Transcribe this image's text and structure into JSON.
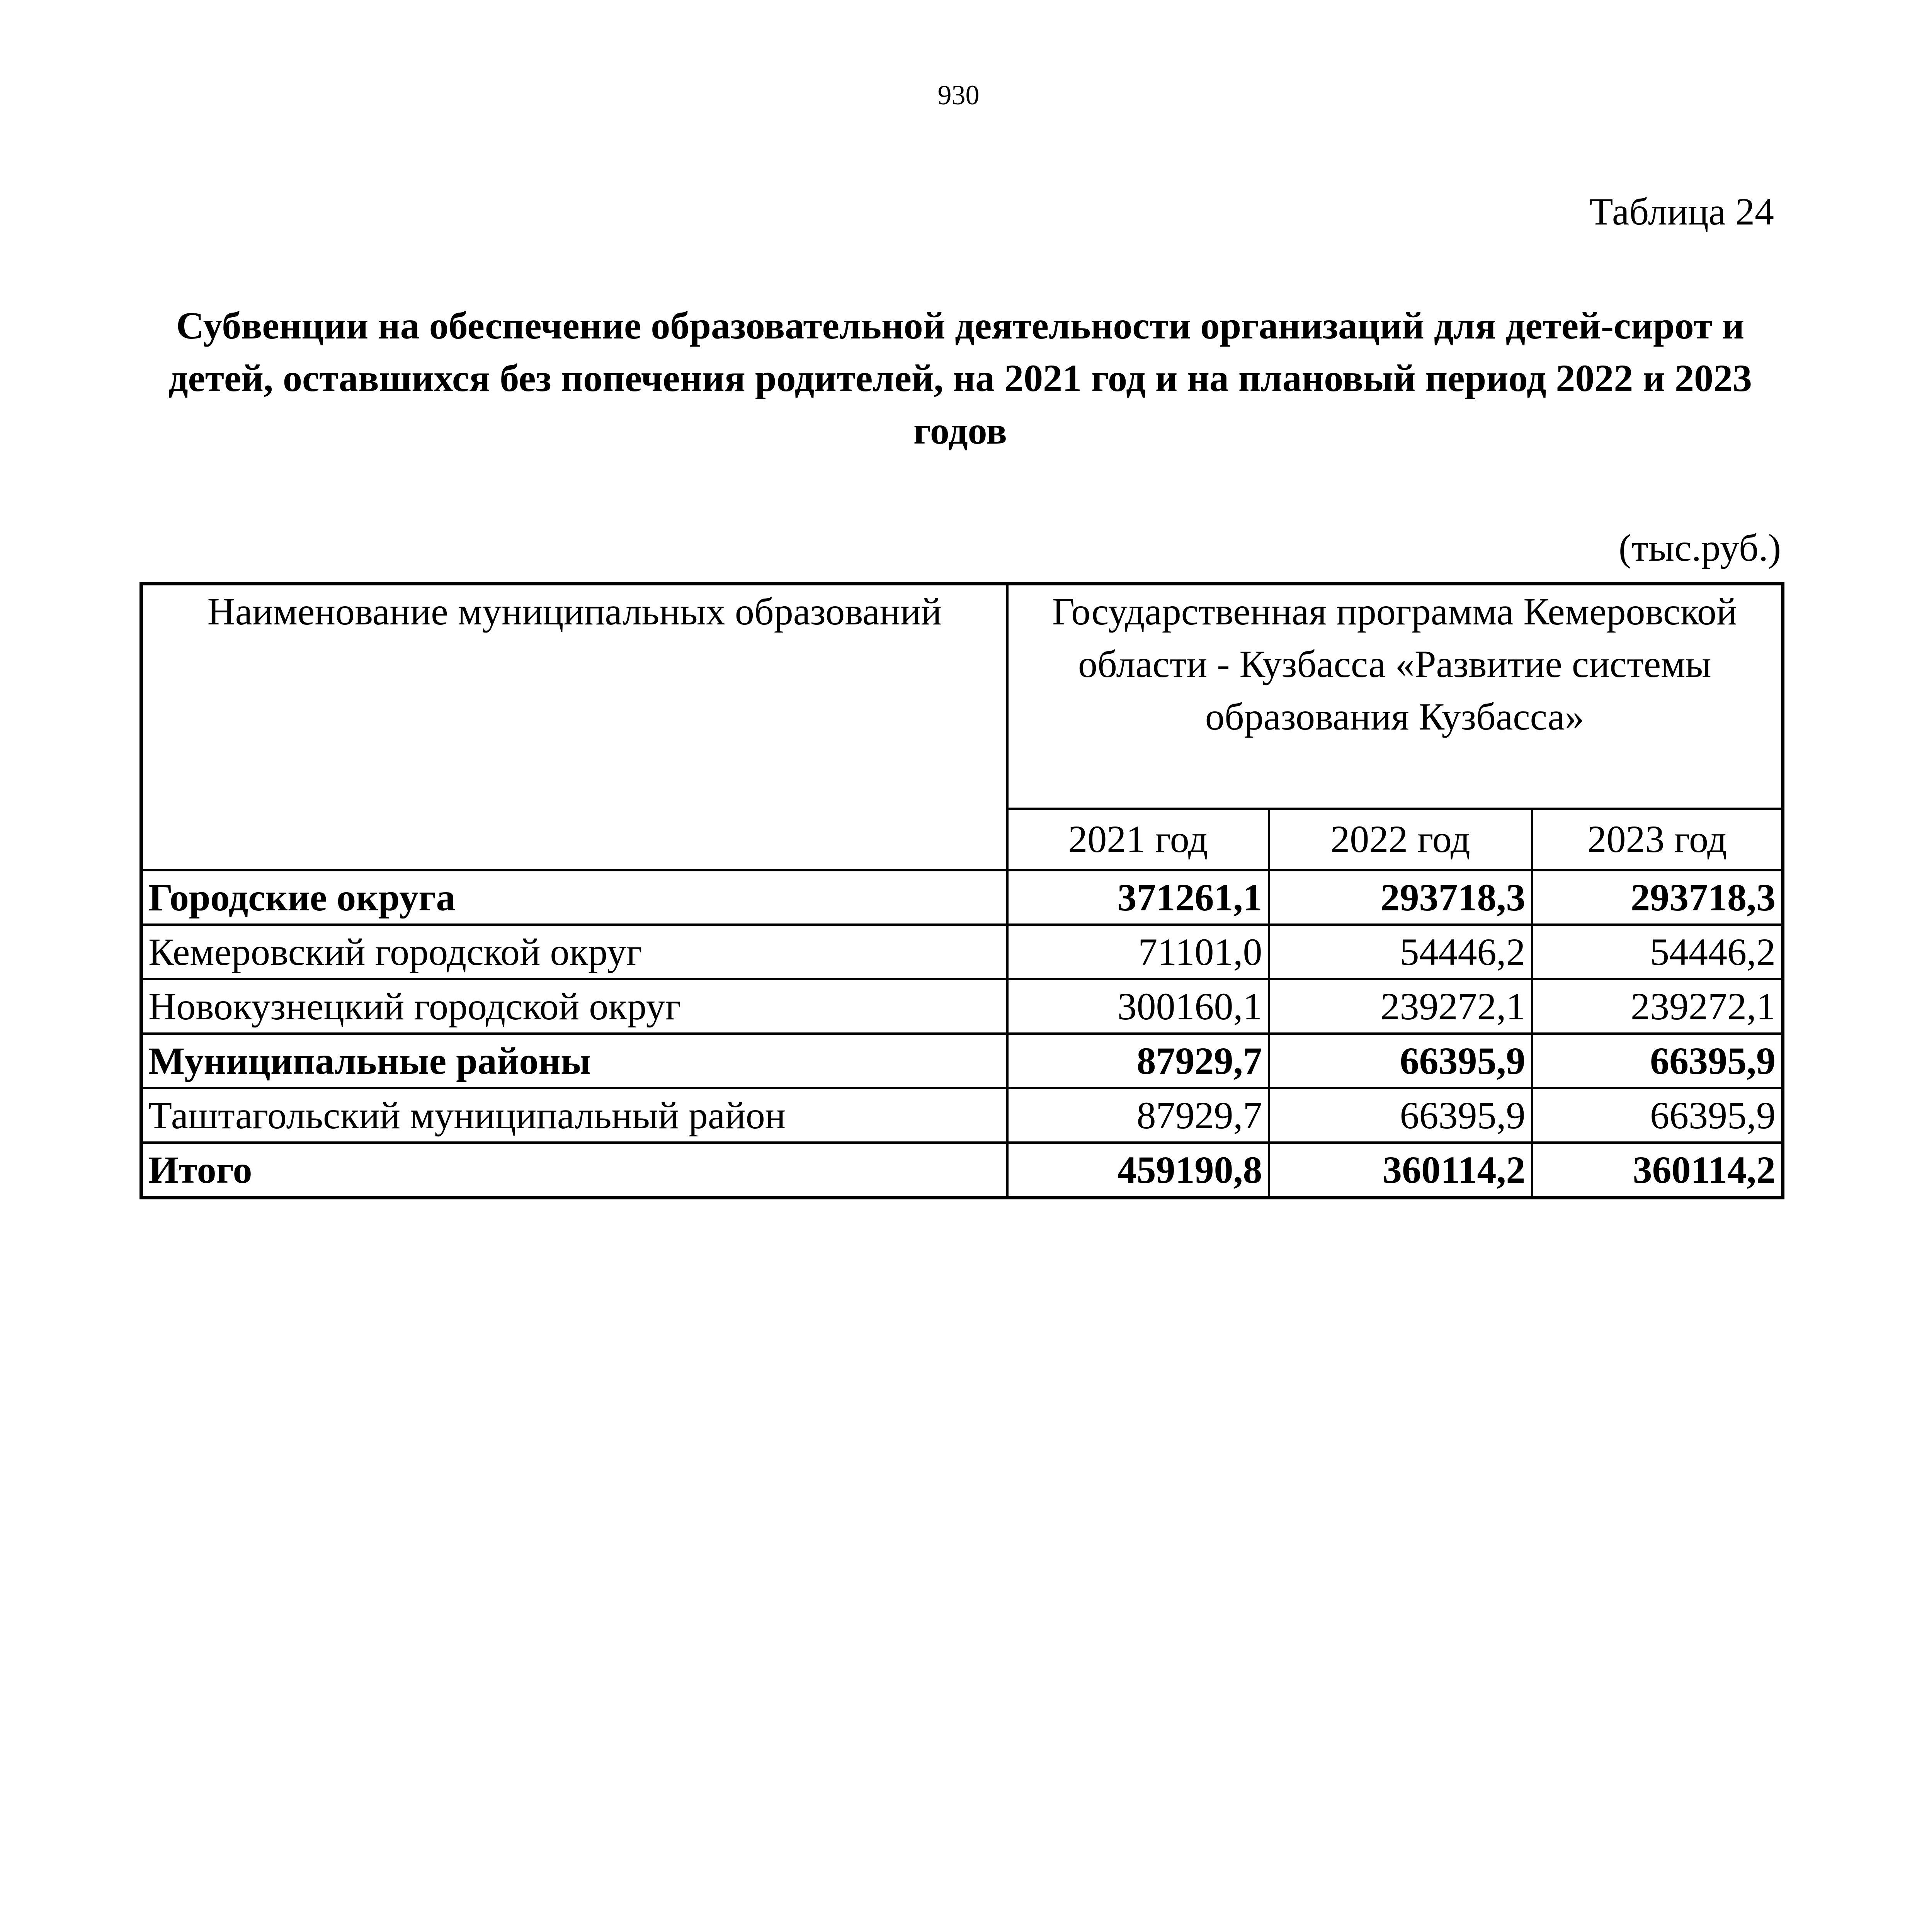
{
  "page_number": "930",
  "table_label": "Таблица 24",
  "title": "Субвенции на обеспечение образовательной деятельности организаций для детей-сирот и детей, оставшихся без попечения родителей, на 2021 год и на плановый период 2022 и 2023 годов",
  "units": "(тыс.руб.)",
  "table": {
    "header_name": "Наименование муниципальных образований",
    "header_program": "Государственная программа Кемеровской области - Кузбасса «Развитие системы образования Кузбасса»",
    "years": [
      "2021 год",
      "2022 год",
      "2023 год"
    ],
    "rows": [
      {
        "name": "Городские округа",
        "bold": true,
        "values": [
          "371261,1",
          "293718,3",
          "293718,3"
        ]
      },
      {
        "name": "Кемеровский городской округ",
        "bold": false,
        "values": [
          "71101,0",
          "54446,2",
          "54446,2"
        ]
      },
      {
        "name": "Новокузнецкий городской округ",
        "bold": false,
        "values": [
          "300160,1",
          "239272,1",
          "239272,1"
        ]
      },
      {
        "name": "Муниципальные районы",
        "bold": true,
        "values": [
          "87929,7",
          "66395,9",
          "66395,9"
        ]
      },
      {
        "name": "Таштагольский муниципальный район",
        "bold": false,
        "values": [
          "87929,7",
          "66395,9",
          "66395,9"
        ]
      },
      {
        "name": "Итого",
        "bold": true,
        "values": [
          "459190,8",
          "360114,2",
          "360114,2"
        ]
      }
    ]
  }
}
